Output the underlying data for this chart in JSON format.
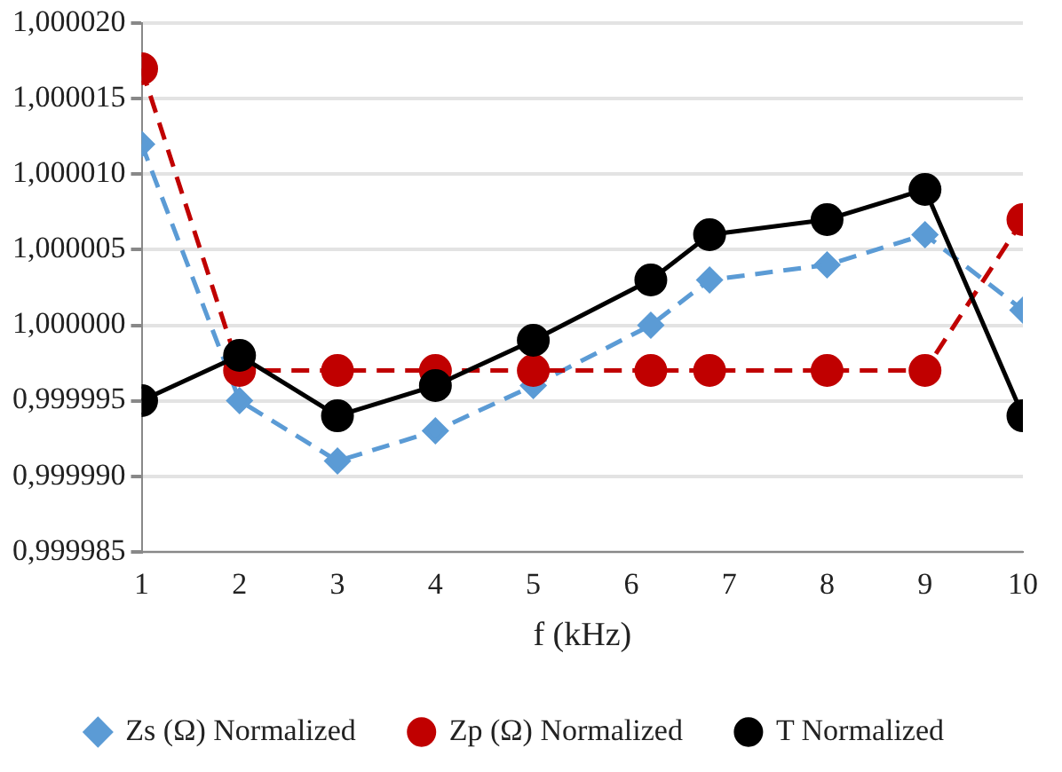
{
  "chart_data": {
    "type": "line",
    "xlabel": "f (kHz)",
    "x": [
      1,
      2,
      3,
      4,
      5,
      6.2,
      6.8,
      8,
      9,
      10
    ],
    "xlim": [
      1,
      10
    ],
    "xticks": [
      1,
      2,
      3,
      4,
      5,
      6,
      7,
      8,
      9,
      10
    ],
    "ylim": [
      0.999985,
      1.00002
    ],
    "yticks": [
      {
        "value": 0.999985,
        "label": "0,999985"
      },
      {
        "value": 0.99999,
        "label": "0,999990"
      },
      {
        "value": 0.999995,
        "label": "0,999995"
      },
      {
        "value": 1.0,
        "label": "1,000000"
      },
      {
        "value": 1.000005,
        "label": "1,000005"
      },
      {
        "value": 1.00001,
        "label": "1,000010"
      },
      {
        "value": 1.000015,
        "label": "1,000015"
      },
      {
        "value": 1.00002,
        "label": "1,000020"
      }
    ],
    "grid": "y",
    "legend": "bottom",
    "series": [
      {
        "name": "Zs (Ω) Normalized",
        "color": "#5b9bd5",
        "marker": "diamond",
        "line_style": "dashed",
        "values": [
          1.000012,
          0.999995,
          0.999991,
          0.999993,
          0.999996,
          1.0,
          1.000003,
          1.000004,
          1.000006,
          1.000001
        ]
      },
      {
        "name": "Zp (Ω) Normalized",
        "color": "#c00000",
        "marker": "circle",
        "line_style": "dashed",
        "values": [
          1.000017,
          0.999997,
          0.999997,
          0.999997,
          0.999997,
          0.999997,
          0.999997,
          0.999997,
          0.999997,
          1.000007
        ]
      },
      {
        "name": "T Normalized",
        "color": "#000000",
        "marker": "circle",
        "line_style": "solid",
        "values": [
          0.999995,
          0.999998,
          0.999994,
          0.999996,
          0.999999,
          1.000003,
          1.000006,
          1.000007,
          1.000009,
          0.999994
        ]
      }
    ]
  }
}
